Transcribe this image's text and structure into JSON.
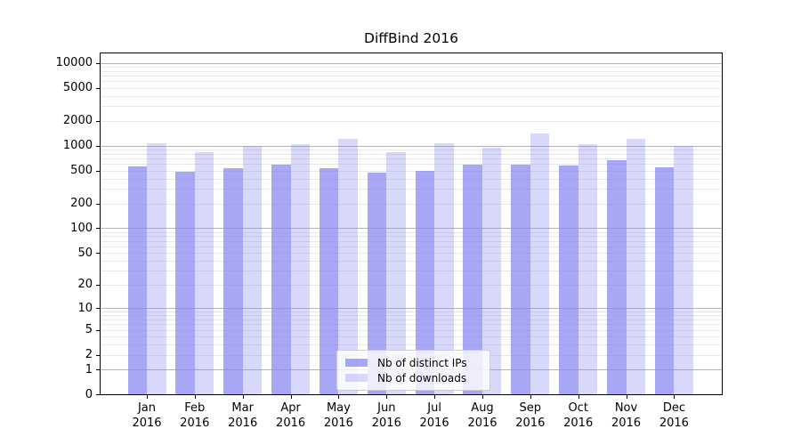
{
  "title": "DiffBind 2016",
  "colors": {
    "bar_base": "#8989f2",
    "ips_alpha": 0.75,
    "downloads_alpha": 0.33,
    "grid_major": "#b4b4b4",
    "grid_minor": "#e8e8e8",
    "frame": "#000000",
    "legend_border": "#cccccc"
  },
  "chart_data": {
    "type": "bar",
    "title": "DiffBind 2016",
    "categories": [
      "Jan 2016",
      "Feb 2016",
      "Mar 2016",
      "Apr 2016",
      "May 2016",
      "Jun 2016",
      "Jul 2016",
      "Aug 2016",
      "Sep 2016",
      "Oct 2016",
      "Nov 2016",
      "Dec 2016"
    ],
    "months": [
      "Jan",
      "Feb",
      "Mar",
      "Apr",
      "May",
      "Jun",
      "Jul",
      "Aug",
      "Sep",
      "Oct",
      "Nov",
      "Dec"
    ],
    "year_label": "2016",
    "series": [
      {
        "name": "Nb of distinct IPs",
        "values": [
          560,
          480,
          535,
          595,
          540,
          475,
          500,
          590,
          595,
          580,
          675,
          550
        ]
      },
      {
        "name": "Nb of downloads",
        "values": [
          1060,
          840,
          1000,
          1050,
          1220,
          835,
          1060,
          950,
          1390,
          1050,
          1200,
          990
        ]
      }
    ],
    "y_scale": "log10(value+1)",
    "y_tick_values": [
      0,
      1,
      2,
      5,
      10,
      20,
      50,
      100,
      200,
      500,
      1000,
      2000,
      5000,
      10000
    ],
    "y_major_grid_values": [
      1,
      10,
      100,
      1000,
      10000
    ],
    "ylim": [
      0,
      13000
    ],
    "xlabel": "",
    "ylabel": "",
    "grid": true,
    "legend_position": "lower center"
  }
}
